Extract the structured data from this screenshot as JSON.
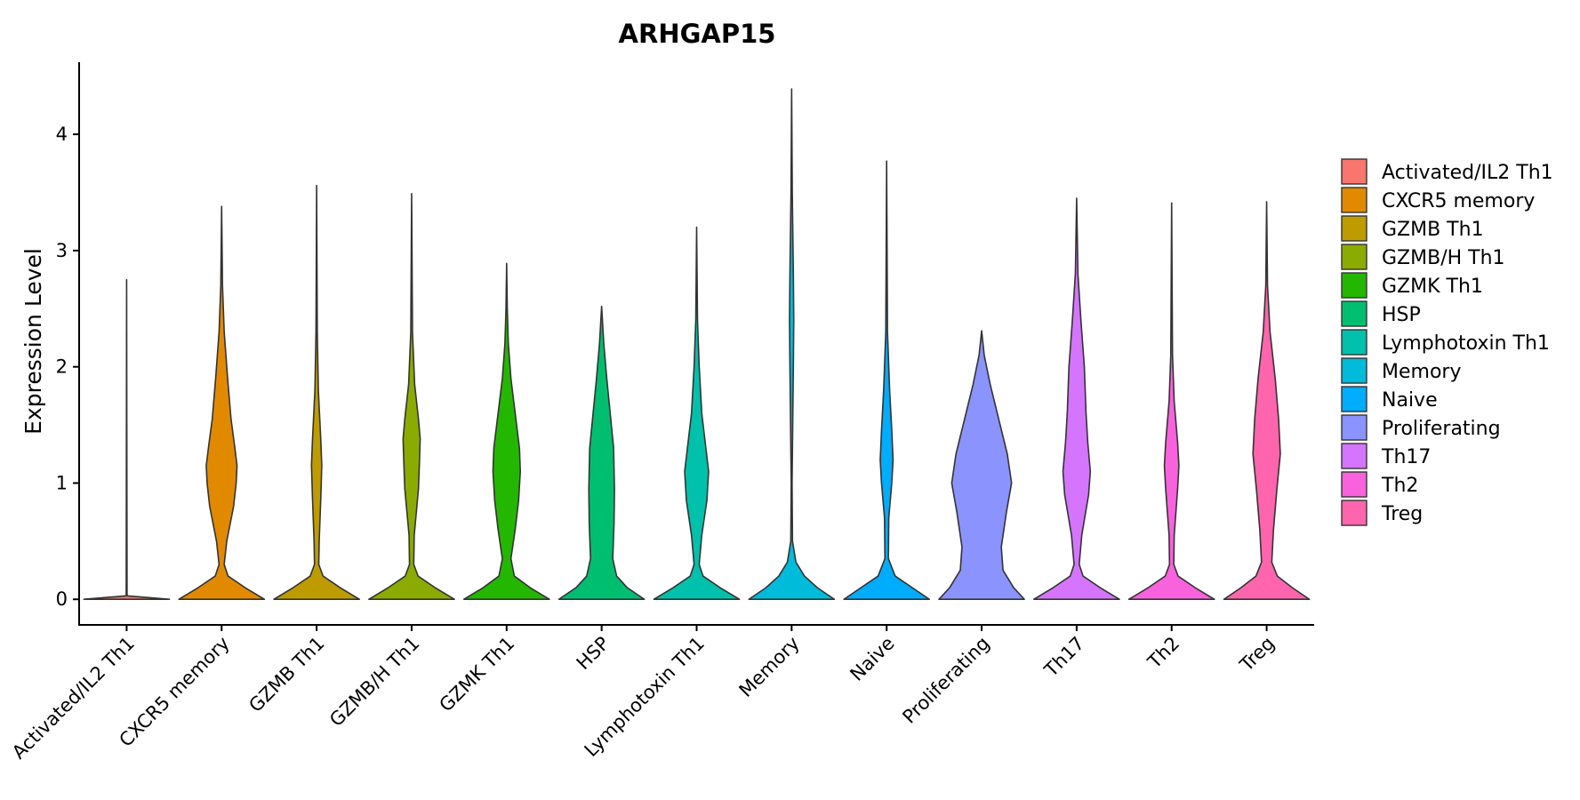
{
  "chart_data": {
    "type": "violin",
    "title": "ARHGAP15",
    "xlabel": "",
    "ylabel": "Expression Level",
    "ylim": [
      -0.22,
      4.62
    ],
    "yticks": [
      0,
      1,
      2,
      3,
      4
    ],
    "grid": false,
    "legend_position": "right",
    "categories": [
      "Activated/IL2 Th1",
      "CXCR5 memory",
      "GZMB Th1",
      "GZMB/H Th1",
      "GZMK Th1",
      "HSP",
      "Lymphotoxin Th1",
      "Memory",
      "Naive",
      "Proliferating",
      "Th17",
      "Th2",
      "Treg"
    ],
    "colors": [
      "#F8766D",
      "#E18A00",
      "#BE9C00",
      "#8CAB00",
      "#24B700",
      "#00BE70",
      "#00C1AB",
      "#00BBDA",
      "#00ACFC",
      "#8B93FF",
      "#D575FE",
      "#F962DD",
      "#FF65AC"
    ],
    "violins": [
      {
        "name": "Activated/IL2 Th1",
        "max": 2.75,
        "profile": [
          [
            0,
            1.0
          ],
          [
            0.03,
            0.01
          ],
          [
            2.75,
            0.0
          ]
        ]
      },
      {
        "name": "CXCR5 memory",
        "max": 3.38,
        "profile": [
          [
            0,
            1.0
          ],
          [
            0.1,
            0.55
          ],
          [
            0.2,
            0.15
          ],
          [
            0.3,
            0.06
          ],
          [
            0.5,
            0.12
          ],
          [
            0.8,
            0.28
          ],
          [
            1.0,
            0.34
          ],
          [
            1.15,
            0.36
          ],
          [
            1.3,
            0.31
          ],
          [
            1.55,
            0.22
          ],
          [
            1.9,
            0.14
          ],
          [
            2.3,
            0.06
          ],
          [
            2.7,
            0.02
          ],
          [
            3.38,
            0.0
          ]
        ]
      },
      {
        "name": "GZMB Th1",
        "max": 3.56,
        "profile": [
          [
            0,
            1.0
          ],
          [
            0.1,
            0.55
          ],
          [
            0.2,
            0.15
          ],
          [
            0.3,
            0.05
          ],
          [
            0.5,
            0.06
          ],
          [
            0.9,
            0.1
          ],
          [
            1.15,
            0.12
          ],
          [
            1.35,
            0.1
          ],
          [
            1.8,
            0.04
          ],
          [
            2.3,
            0.015
          ],
          [
            3.56,
            0.0
          ]
        ]
      },
      {
        "name": "GZMB/H Th1",
        "max": 3.49,
        "profile": [
          [
            0,
            1.0
          ],
          [
            0.1,
            0.55
          ],
          [
            0.2,
            0.15
          ],
          [
            0.3,
            0.05
          ],
          [
            0.55,
            0.06
          ],
          [
            0.95,
            0.16
          ],
          [
            1.15,
            0.18
          ],
          [
            1.38,
            0.2
          ],
          [
            1.55,
            0.16
          ],
          [
            1.85,
            0.07
          ],
          [
            2.3,
            0.02
          ],
          [
            3.49,
            0.0
          ]
        ]
      },
      {
        "name": "GZMK Th1",
        "max": 2.89,
        "profile": [
          [
            0,
            1.0
          ],
          [
            0.1,
            0.55
          ],
          [
            0.2,
            0.18
          ],
          [
            0.35,
            0.1
          ],
          [
            0.6,
            0.2
          ],
          [
            0.85,
            0.28
          ],
          [
            1.1,
            0.32
          ],
          [
            1.3,
            0.3
          ],
          [
            1.6,
            0.2
          ],
          [
            1.9,
            0.1
          ],
          [
            2.2,
            0.04
          ],
          [
            2.5,
            0.015
          ],
          [
            2.89,
            0.0
          ]
        ]
      },
      {
        "name": "HSP",
        "max": 2.52,
        "profile": [
          [
            0,
            1.0
          ],
          [
            0.1,
            0.6
          ],
          [
            0.2,
            0.35
          ],
          [
            0.35,
            0.26
          ],
          [
            0.65,
            0.29
          ],
          [
            0.95,
            0.3
          ],
          [
            1.3,
            0.28
          ],
          [
            1.6,
            0.2
          ],
          [
            1.9,
            0.12
          ],
          [
            2.2,
            0.05
          ],
          [
            2.52,
            0.0
          ]
        ]
      },
      {
        "name": "Lymphotoxin Th1",
        "max": 3.2,
        "profile": [
          [
            0,
            1.0
          ],
          [
            0.1,
            0.55
          ],
          [
            0.2,
            0.15
          ],
          [
            0.3,
            0.06
          ],
          [
            0.55,
            0.12
          ],
          [
            0.85,
            0.24
          ],
          [
            1.1,
            0.28
          ],
          [
            1.35,
            0.2
          ],
          [
            1.6,
            0.12
          ],
          [
            2.0,
            0.06
          ],
          [
            2.4,
            0.02
          ],
          [
            3.2,
            0.0
          ]
        ]
      },
      {
        "name": "Memory",
        "max": 4.39,
        "profile": [
          [
            0,
            1.0
          ],
          [
            0.1,
            0.6
          ],
          [
            0.2,
            0.3
          ],
          [
            0.32,
            0.1
          ],
          [
            0.5,
            0.02
          ],
          [
            1.0,
            0.01
          ],
          [
            2.0,
            0.04
          ],
          [
            2.4,
            0.05
          ],
          [
            2.8,
            0.04
          ],
          [
            3.5,
            0.015
          ],
          [
            4.39,
            0.0
          ]
        ]
      },
      {
        "name": "Naive",
        "max": 3.77,
        "profile": [
          [
            0,
            1.0
          ],
          [
            0.1,
            0.6
          ],
          [
            0.2,
            0.2
          ],
          [
            0.35,
            0.04
          ],
          [
            0.7,
            0.05
          ],
          [
            1.0,
            0.12
          ],
          [
            1.2,
            0.15
          ],
          [
            1.45,
            0.12
          ],
          [
            1.8,
            0.07
          ],
          [
            2.3,
            0.02
          ],
          [
            3.77,
            0.0
          ]
        ]
      },
      {
        "name": "Proliferating",
        "max": 2.31,
        "profile": [
          [
            0,
            1.0
          ],
          [
            0.1,
            0.75
          ],
          [
            0.25,
            0.5
          ],
          [
            0.45,
            0.46
          ],
          [
            0.75,
            0.58
          ],
          [
            1.0,
            0.7
          ],
          [
            1.25,
            0.6
          ],
          [
            1.55,
            0.4
          ],
          [
            1.85,
            0.2
          ],
          [
            2.1,
            0.06
          ],
          [
            2.31,
            0.0
          ]
        ]
      },
      {
        "name": "Th17",
        "max": 3.45,
        "profile": [
          [
            0,
            1.0
          ],
          [
            0.1,
            0.55
          ],
          [
            0.2,
            0.15
          ],
          [
            0.3,
            0.06
          ],
          [
            0.55,
            0.12
          ],
          [
            0.9,
            0.28
          ],
          [
            1.1,
            0.32
          ],
          [
            1.35,
            0.26
          ],
          [
            1.6,
            0.22
          ],
          [
            2.0,
            0.18
          ],
          [
            2.4,
            0.1
          ],
          [
            2.8,
            0.03
          ],
          [
            3.45,
            0.0
          ]
        ]
      },
      {
        "name": "Th2",
        "max": 3.41,
        "profile": [
          [
            0,
            1.0
          ],
          [
            0.1,
            0.55
          ],
          [
            0.2,
            0.15
          ],
          [
            0.3,
            0.05
          ],
          [
            0.55,
            0.06
          ],
          [
            0.95,
            0.14
          ],
          [
            1.15,
            0.17
          ],
          [
            1.35,
            0.14
          ],
          [
            1.7,
            0.06
          ],
          [
            2.1,
            0.02
          ],
          [
            3.41,
            0.0
          ]
        ]
      },
      {
        "name": "Treg",
        "max": 3.42,
        "profile": [
          [
            0,
            1.0
          ],
          [
            0.1,
            0.6
          ],
          [
            0.2,
            0.25
          ],
          [
            0.32,
            0.12
          ],
          [
            0.6,
            0.16
          ],
          [
            0.95,
            0.24
          ],
          [
            1.25,
            0.32
          ],
          [
            1.55,
            0.28
          ],
          [
            1.9,
            0.2
          ],
          [
            2.3,
            0.08
          ],
          [
            2.7,
            0.02
          ],
          [
            3.42,
            0.0
          ]
        ]
      }
    ]
  }
}
